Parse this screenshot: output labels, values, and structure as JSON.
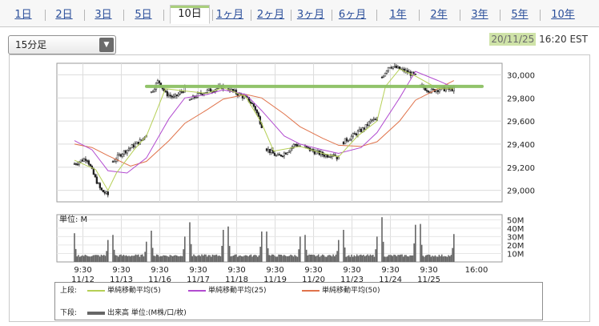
{
  "tabs": [
    {
      "label": "1日",
      "active": false
    },
    {
      "label": "2日",
      "active": false
    },
    {
      "label": "3日",
      "active": false
    },
    {
      "label": "5日",
      "active": false
    },
    {
      "label": "10日",
      "active": true
    },
    {
      "label": "1ヶ月",
      "active": false
    },
    {
      "label": "2ヶ月",
      "active": false
    },
    {
      "label": "3ヶ月",
      "active": false
    },
    {
      "label": "6ヶ月",
      "active": false
    },
    {
      "label": "1年",
      "active": false
    },
    {
      "label": "2年",
      "active": false
    },
    {
      "label": "3年",
      "active": false
    },
    {
      "label": "5年",
      "active": false
    },
    {
      "label": "10年",
      "active": false
    }
  ],
  "interval_select": {
    "value": "15分足"
  },
  "timestamp": {
    "date": "20/11/25",
    "time": "16:20 EST"
  },
  "legend": {
    "upper_label": "上段:",
    "lower_label": "下段:",
    "ma5": {
      "label": "単純移動平均(5)",
      "color": "#b5cf55"
    },
    "ma25": {
      "label": "単純移動平均(25)",
      "color": "#b24bd0"
    },
    "ma50": {
      "label": "単純移動平均(50)",
      "color": "#e0734b"
    },
    "volume": {
      "label": "出来高 単位:(M株/口/枚)",
      "color": "#666666"
    }
  },
  "volume_unit_label": "単位: M",
  "chart_data": [
    {
      "type": "candlestick",
      "x_tick_times": [
        "9:30",
        "9:30",
        "9:30",
        "9:30",
        "9:30",
        "9:30",
        "9:30",
        "9:30",
        "9:30",
        "9:30",
        "16:00"
      ],
      "x_tick_dates": [
        "11/12",
        "11/13",
        "11/16",
        "11/17",
        "11/18",
        "11/19",
        "11/20",
        "11/23",
        "11/24",
        "11/25",
        ""
      ],
      "y_ticks": [
        29000,
        29200,
        29400,
        29600,
        29800,
        30000
      ],
      "y_tick_labels": [
        "29,000",
        "29,200",
        "29,400",
        "29,600",
        "29,800",
        "30,000"
      ],
      "ylim": [
        28900,
        30100
      ],
      "grid": true,
      "reference_line": {
        "value": 29900,
        "color": "#8cc063"
      },
      "price_path": [
        {
          "day": 0,
          "x": 0.0,
          "y": 29230
        },
        {
          "day": 0,
          "x": 0.35,
          "y": 29280
        },
        {
          "day": 0,
          "x": 0.55,
          "y": 29130
        },
        {
          "day": 0,
          "x": 0.75,
          "y": 29000
        },
        {
          "day": 0,
          "x": 0.95,
          "y": 28960
        },
        {
          "day": 1,
          "x": 0.0,
          "y": 29250
        },
        {
          "day": 1,
          "x": 0.25,
          "y": 29320
        },
        {
          "day": 1,
          "x": 0.55,
          "y": 29380
        },
        {
          "day": 1,
          "x": 0.8,
          "y": 29430
        },
        {
          "day": 1,
          "x": 0.95,
          "y": 29490
        },
        {
          "day": 2,
          "x": 0.0,
          "y": 29850
        },
        {
          "day": 2,
          "x": 0.2,
          "y": 29950
        },
        {
          "day": 2,
          "x": 0.4,
          "y": 29840
        },
        {
          "day": 2,
          "x": 0.65,
          "y": 29800
        },
        {
          "day": 2,
          "x": 0.95,
          "y": 29880
        },
        {
          "day": 3,
          "x": 0.0,
          "y": 29780
        },
        {
          "day": 3,
          "x": 0.25,
          "y": 29830
        },
        {
          "day": 3,
          "x": 0.5,
          "y": 29860
        },
        {
          "day": 3,
          "x": 0.75,
          "y": 29880
        },
        {
          "day": 3,
          "x": 0.95,
          "y": 29900
        },
        {
          "day": 4,
          "x": 0.0,
          "y": 29880
        },
        {
          "day": 4,
          "x": 0.3,
          "y": 29830
        },
        {
          "day": 4,
          "x": 0.55,
          "y": 29790
        },
        {
          "day": 4,
          "x": 0.75,
          "y": 29720
        },
        {
          "day": 4,
          "x": 0.95,
          "y": 29560
        },
        {
          "day": 5,
          "x": 0.0,
          "y": 29360
        },
        {
          "day": 5,
          "x": 0.3,
          "y": 29290
        },
        {
          "day": 5,
          "x": 0.55,
          "y": 29330
        },
        {
          "day": 5,
          "x": 0.8,
          "y": 29400
        },
        {
          "day": 5,
          "x": 0.95,
          "y": 29380
        },
        {
          "day": 6,
          "x": 0.0,
          "y": 29370
        },
        {
          "day": 6,
          "x": 0.3,
          "y": 29330
        },
        {
          "day": 6,
          "x": 0.6,
          "y": 29300
        },
        {
          "day": 6,
          "x": 0.8,
          "y": 29320
        },
        {
          "day": 6,
          "x": 0.95,
          "y": 29270
        },
        {
          "day": 7,
          "x": 0.0,
          "y": 29420
        },
        {
          "day": 7,
          "x": 0.3,
          "y": 29480
        },
        {
          "day": 7,
          "x": 0.6,
          "y": 29540
        },
        {
          "day": 7,
          "x": 0.8,
          "y": 29610
        },
        {
          "day": 7,
          "x": 0.95,
          "y": 29600
        },
        {
          "day": 8,
          "x": 0.0,
          "y": 29980
        },
        {
          "day": 8,
          "x": 0.2,
          "y": 30080
        },
        {
          "day": 8,
          "x": 0.5,
          "y": 30050
        },
        {
          "day": 8,
          "x": 0.75,
          "y": 30020
        },
        {
          "day": 8,
          "x": 0.95,
          "y": 29990
        },
        {
          "day": 9,
          "x": 0.0,
          "y": 29900
        },
        {
          "day": 9,
          "x": 0.3,
          "y": 29860
        },
        {
          "day": 9,
          "x": 0.6,
          "y": 29880
        },
        {
          "day": 9,
          "x": 0.8,
          "y": 29870
        },
        {
          "day": 9,
          "x": 0.95,
          "y": 29880
        }
      ],
      "ma5_path": [
        {
          "day": 0,
          "x": 0.0,
          "y": 29260
        },
        {
          "day": 0,
          "x": 0.6,
          "y": 29180
        },
        {
          "day": 0,
          "x": 0.95,
          "y": 29000
        },
        {
          "day": 1,
          "x": 0.1,
          "y": 29150
        },
        {
          "day": 1,
          "x": 0.6,
          "y": 29350
        },
        {
          "day": 1,
          "x": 0.95,
          "y": 29470
        },
        {
          "day": 2,
          "x": 0.1,
          "y": 29650
        },
        {
          "day": 2,
          "x": 0.4,
          "y": 29880
        },
        {
          "day": 2,
          "x": 0.95,
          "y": 29860
        },
        {
          "day": 3,
          "x": 0.5,
          "y": 29840
        },
        {
          "day": 3,
          "x": 0.95,
          "y": 29890
        },
        {
          "day": 4,
          "x": 0.5,
          "y": 29810
        },
        {
          "day": 4,
          "x": 0.95,
          "y": 29580
        },
        {
          "day": 5,
          "x": 0.2,
          "y": 29340
        },
        {
          "day": 5,
          "x": 0.95,
          "y": 29380
        },
        {
          "day": 6,
          "x": 0.5,
          "y": 29320
        },
        {
          "day": 6,
          "x": 0.95,
          "y": 29290
        },
        {
          "day": 7,
          "x": 0.4,
          "y": 29470
        },
        {
          "day": 7,
          "x": 0.95,
          "y": 29600
        },
        {
          "day": 8,
          "x": 0.1,
          "y": 29900
        },
        {
          "day": 8,
          "x": 0.5,
          "y": 30050
        },
        {
          "day": 8,
          "x": 0.95,
          "y": 29990
        },
        {
          "day": 9,
          "x": 0.5,
          "y": 29880
        },
        {
          "day": 9,
          "x": 0.95,
          "y": 29880
        }
      ],
      "ma25_path": [
        {
          "day": 0,
          "x": 0.0,
          "y": 29430
        },
        {
          "day": 0,
          "x": 0.5,
          "y": 29350
        },
        {
          "day": 0,
          "x": 0.95,
          "y": 29170
        },
        {
          "day": 1,
          "x": 0.4,
          "y": 29150
        },
        {
          "day": 1,
          "x": 0.95,
          "y": 29280
        },
        {
          "day": 2,
          "x": 0.5,
          "y": 29620
        },
        {
          "day": 2,
          "x": 0.95,
          "y": 29800
        },
        {
          "day": 3,
          "x": 0.5,
          "y": 29830
        },
        {
          "day": 3,
          "x": 0.95,
          "y": 29870
        },
        {
          "day": 4,
          "x": 0.5,
          "y": 29830
        },
        {
          "day": 4,
          "x": 0.95,
          "y": 29690
        },
        {
          "day": 5,
          "x": 0.5,
          "y": 29470
        },
        {
          "day": 5,
          "x": 0.95,
          "y": 29400
        },
        {
          "day": 6,
          "x": 0.5,
          "y": 29350
        },
        {
          "day": 6,
          "x": 0.95,
          "y": 29320
        },
        {
          "day": 7,
          "x": 0.5,
          "y": 29370
        },
        {
          "day": 7,
          "x": 0.95,
          "y": 29500
        },
        {
          "day": 8,
          "x": 0.5,
          "y": 29800
        },
        {
          "day": 8,
          "x": 0.95,
          "y": 30030
        },
        {
          "day": 9,
          "x": 0.5,
          "y": 29950
        },
        {
          "day": 9,
          "x": 0.95,
          "y": 29890
        }
      ],
      "ma50_path": [
        {
          "day": 0,
          "x": 0.0,
          "y": 29400
        },
        {
          "day": 0,
          "x": 0.5,
          "y": 29370
        },
        {
          "day": 0,
          "x": 0.95,
          "y": 29300
        },
        {
          "day": 1,
          "x": 0.5,
          "y": 29210
        },
        {
          "day": 1,
          "x": 0.95,
          "y": 29250
        },
        {
          "day": 2,
          "x": 0.5,
          "y": 29430
        },
        {
          "day": 2,
          "x": 0.95,
          "y": 29580
        },
        {
          "day": 3,
          "x": 0.5,
          "y": 29700
        },
        {
          "day": 3,
          "x": 0.95,
          "y": 29790
        },
        {
          "day": 4,
          "x": 0.5,
          "y": 29830
        },
        {
          "day": 4,
          "x": 0.95,
          "y": 29800
        },
        {
          "day": 5,
          "x": 0.5,
          "y": 29660
        },
        {
          "day": 5,
          "x": 0.95,
          "y": 29550
        },
        {
          "day": 6,
          "x": 0.5,
          "y": 29450
        },
        {
          "day": 6,
          "x": 0.95,
          "y": 29390
        },
        {
          "day": 7,
          "x": 0.5,
          "y": 29380
        },
        {
          "day": 7,
          "x": 0.95,
          "y": 29420
        },
        {
          "day": 8,
          "x": 0.5,
          "y": 29600
        },
        {
          "day": 8,
          "x": 0.95,
          "y": 29780
        },
        {
          "day": 9,
          "x": 0.5,
          "y": 29880
        },
        {
          "day": 9,
          "x": 0.95,
          "y": 29950
        }
      ]
    },
    {
      "type": "bar",
      "y_ticks": [
        10,
        20,
        30,
        40,
        50
      ],
      "y_tick_labels": [
        "10M",
        "20M",
        "30M",
        "40M",
        "50M"
      ],
      "ylim": [
        0,
        56
      ],
      "daily_peaks": [
        {
          "open": 34,
          "close": 26
        },
        {
          "open": 32,
          "close": 24
        },
        {
          "open": 37,
          "close": 30
        },
        {
          "open": 47,
          "close": 38
        },
        {
          "open": 42,
          "close": 36
        },
        {
          "open": 36,
          "close": 30
        },
        {
          "open": 32,
          "close": 26
        },
        {
          "open": 38,
          "close": 30
        },
        {
          "open": 53,
          "close": 44
        },
        {
          "open": 45,
          "close": 33
        }
      ],
      "baseline": 6
    }
  ]
}
